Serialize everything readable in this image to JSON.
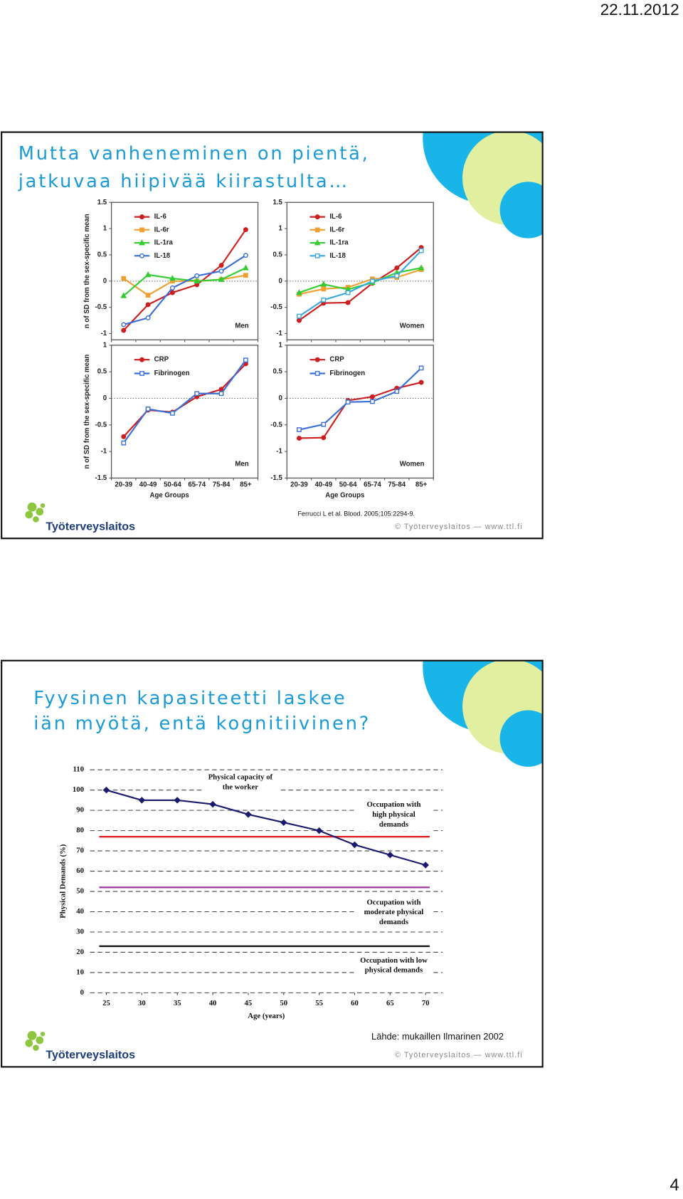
{
  "date": "22.11.2012",
  "page_number": 4,
  "slides": [
    {
      "title": [
        "Mutta vanheneminen on pientä,",
        "jatkuvaa hiipivää kiirastulta…"
      ],
      "logo": "Työterveyslaitos",
      "footer": "© Työterveyslaitos  —  www.ttl.fi",
      "source": "Ferrucci L et al. Blood. 2005;105:2294-9."
    },
    {
      "title": [
        "Fyysinen kapasiteetti laskee",
        "iän myötä, entä kognitiivinen?"
      ],
      "logo": "Työterveyslaitos",
      "footer": "© Työterveyslaitos  —  www.ttl.fi",
      "source": "Lähde: mukaillen Ilmarinen 2002"
    }
  ],
  "chart_data": [
    {
      "type": "line",
      "label": "Men",
      "y_label": "n of SD from the sex-specific mean",
      "ylim": [
        -1.12,
        1.5
      ],
      "yticks": [
        1.5,
        1,
        0.5,
        0,
        -0.5,
        -1
      ],
      "zero_line": true,
      "series": [
        {
          "name": "IL-6",
          "color": "#cc1f1f",
          "marker": "circle",
          "values": [
            -0.94,
            -0.45,
            -0.22,
            -0.07,
            0.3,
            0.98
          ]
        },
        {
          "name": "IL-6r",
          "color": "#f0a030",
          "marker": "square",
          "values": [
            0.05,
            -0.27,
            0,
            0,
            0.03,
            0.11
          ]
        },
        {
          "name": "IL-1ra",
          "color": "#33cc33",
          "marker": "triangle",
          "values": [
            -0.28,
            0.12,
            0.05,
            0,
            0.03,
            0.25
          ]
        },
        {
          "name": "IL-18",
          "color": "#3a6fd8",
          "marker": "open-circle",
          "values": [
            -0.83,
            -0.7,
            -0.13,
            0.1,
            0.19,
            0.49
          ]
        }
      ]
    },
    {
      "type": "line",
      "label": "Women",
      "ylim": [
        -1.12,
        1.5
      ],
      "yticks": [
        1.5,
        1,
        0.5,
        0,
        -0.5,
        -1
      ],
      "zero_line": true,
      "series": [
        {
          "name": "IL-6",
          "color": "#cc1f1f",
          "marker": "circle",
          "values": [
            -0.75,
            -0.42,
            -0.41,
            -0.04,
            0.25,
            0.64
          ]
        },
        {
          "name": "IL-6r",
          "color": "#f0a030",
          "marker": "square",
          "values": [
            -0.25,
            -0.15,
            -0.12,
            0.04,
            0.07,
            0.22
          ]
        },
        {
          "name": "IL-1ra",
          "color": "#33cc33",
          "marker": "triangle",
          "values": [
            -0.22,
            -0.06,
            -0.16,
            -0.03,
            0.16,
            0.25
          ]
        },
        {
          "name": "IL-18",
          "color": "#3aa8e0",
          "marker": "open-square",
          "values": [
            -0.67,
            -0.36,
            -0.22,
            0,
            0.1,
            0.58
          ]
        }
      ]
    },
    {
      "type": "line",
      "label": "Men",
      "y_label": "n of SD from the sex-specific mean",
      "x_label": "Age Groups",
      "categories": [
        "20-39",
        "40-49",
        "50-64",
        "65-74",
        "75-84",
        "85+"
      ],
      "ylim": [
        -1.5,
        1
      ],
      "yticks": [
        1,
        0.5,
        0,
        -0.5,
        -1,
        -1.5
      ],
      "zero_line": true,
      "series": [
        {
          "name": "CRP",
          "color": "#cc1f1f",
          "marker": "circle",
          "values": [
            -0.72,
            -0.22,
            -0.26,
            0.03,
            0.17,
            0.65
          ]
        },
        {
          "name": "Fibrinogen",
          "color": "#3a6fd8",
          "marker": "open-square",
          "values": [
            -0.84,
            -0.2,
            -0.28,
            0.09,
            0.09,
            0.72
          ]
        }
      ]
    },
    {
      "type": "line",
      "label": "Women",
      "x_label": "Age Groups",
      "categories": [
        "20-39",
        "40-49",
        "50-64",
        "65-74",
        "75-84",
        "85+"
      ],
      "ylim": [
        -1.5,
        1
      ],
      "yticks": [
        1,
        0.5,
        0,
        -0.5,
        -1,
        -1.5
      ],
      "zero_line": true,
      "series": [
        {
          "name": "CRP",
          "color": "#cc1f1f",
          "marker": "circle",
          "values": [
            -0.75,
            -0.74,
            -0.04,
            0.03,
            0.19,
            0.3
          ]
        },
        {
          "name": "Fibrinogen",
          "color": "#3a6fd8",
          "marker": "open-square",
          "values": [
            -0.59,
            -0.49,
            -0.07,
            -0.06,
            0.13,
            0.57
          ]
        }
      ]
    },
    {
      "type": "line",
      "x_label": "Age (years)",
      "y_label": "Physical Demands (%)",
      "x": [
        25,
        30,
        35,
        40,
        45,
        50,
        55,
        60,
        65,
        70
      ],
      "xlim": [
        22.7,
        72.4
      ],
      "xticks": [
        25,
        30,
        35,
        40,
        45,
        50,
        55,
        60,
        65,
        70
      ],
      "ylim": [
        0,
        110
      ],
      "yticks": [
        0,
        10,
        20,
        30,
        40,
        50,
        60,
        70,
        80,
        90,
        100,
        110
      ],
      "grid": true,
      "series": [
        {
          "name": [
            "Physical capacity of",
            "the worker"
          ],
          "color": "#1a1a6e",
          "marker": "diamond",
          "values": [
            100,
            95,
            95,
            93,
            88,
            84,
            80,
            73,
            68,
            63
          ]
        }
      ],
      "reference_lines": [
        {
          "label": [
            "Occupation with",
            "high physical",
            "demands"
          ],
          "color": "#e02020",
          "value": 77
        },
        {
          "label": [
            "Occupation with",
            "moderate physical",
            "demands"
          ],
          "color": "#a040a0",
          "value": 52
        },
        {
          "label": [
            "Occupation with low",
            "physical demands"
          ],
          "color": "#111111",
          "value": 23
        }
      ]
    }
  ]
}
